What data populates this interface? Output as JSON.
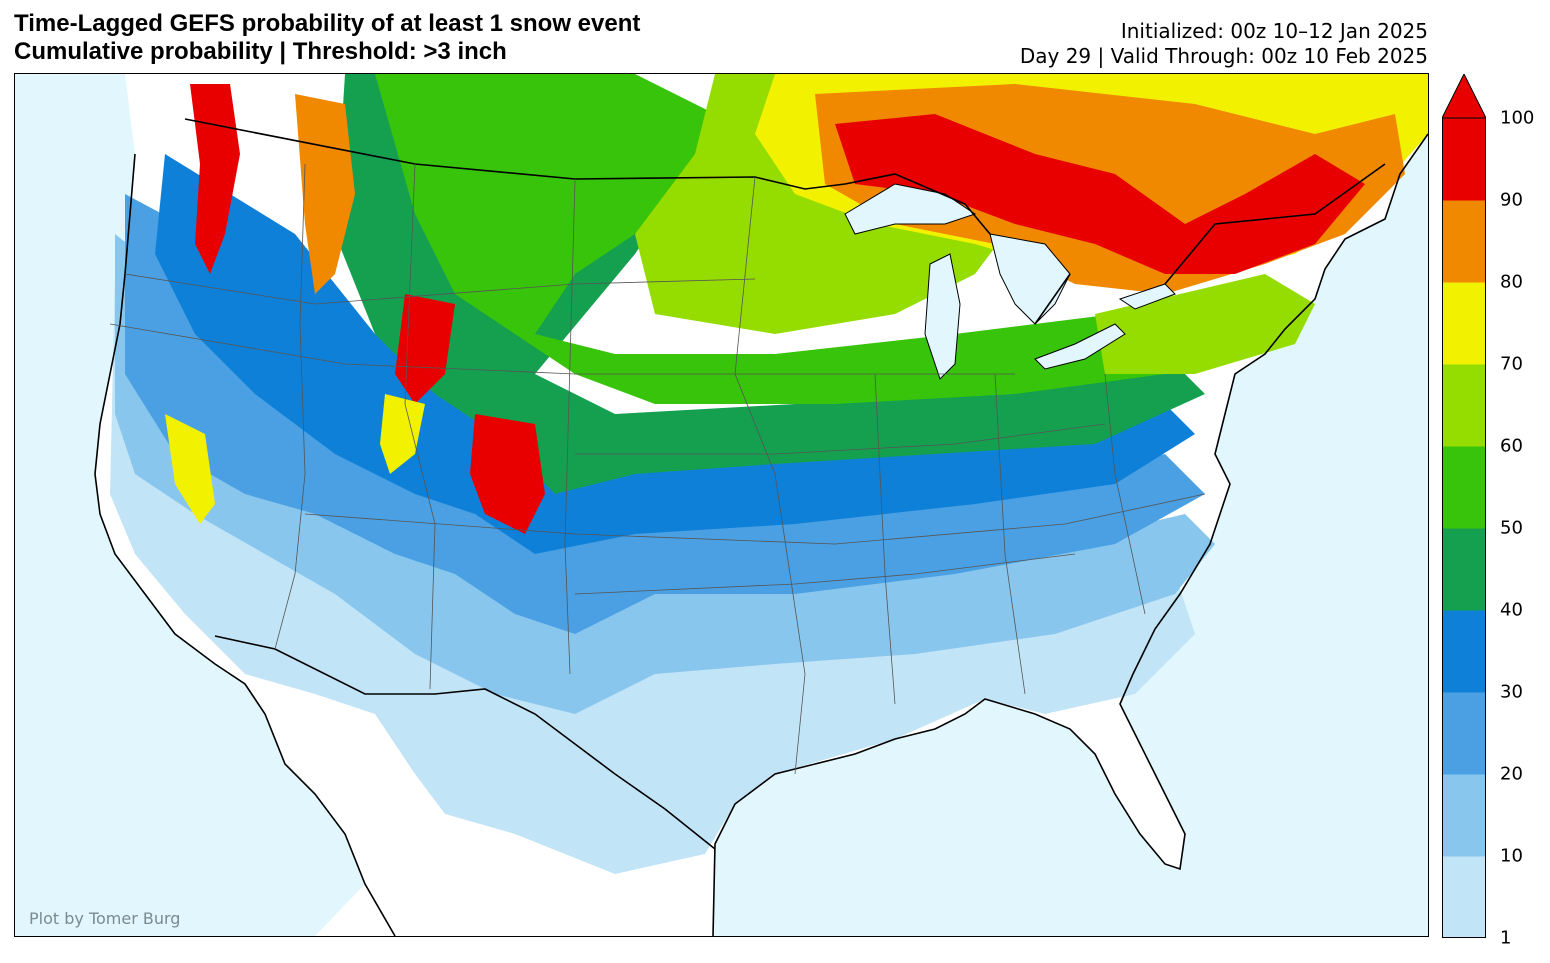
{
  "header": {
    "title": "Time-Lagged GEFS probability of at least 1 snow event",
    "subtitle": "Cumulative probability | Threshold: >3 inch",
    "initialized": "Initialized: 00z 10–12 Jan 2025",
    "valid": "Day 29 | Valid Through: 00z 10 Feb 2025"
  },
  "map": {
    "credit": "Plot by Tomer Burg",
    "region": "Contiguous United States",
    "ocean_color": "#e1f7fd",
    "land_color": "#ffffff"
  },
  "colorbar": {
    "labels": [
      "1",
      "10",
      "20",
      "30",
      "40",
      "50",
      "60",
      "70",
      "80",
      "90",
      "100"
    ],
    "colors": [
      "#c2e4f7",
      "#88c6ee",
      "#4aa0e2",
      "#0f80d8",
      "#15a050",
      "#37c40a",
      "#95dc00",
      "#f2f200",
      "#f08800",
      "#e80000"
    ],
    "extend": "max"
  }
}
